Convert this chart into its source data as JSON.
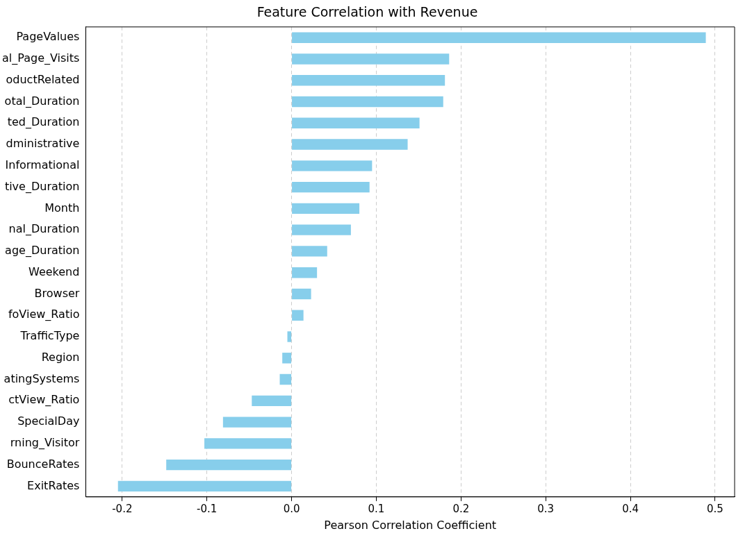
{
  "chart_data": {
    "type": "bar",
    "orientation": "horizontal",
    "title": "Feature Correlation with Revenue",
    "xlabel": "Pearson Correlation Coefficient",
    "categories": [
      "PageValues",
      "al_Page_Visits",
      "oductRelated",
      "otal_Duration",
      "ted_Duration",
      "dministrative",
      "Informational",
      "tive_Duration",
      "Month",
      "nal_Duration",
      "age_Duration",
      "Weekend",
      "Browser",
      "foView_Ratio",
      "TrafficType",
      "Region",
      "atingSystems",
      "ctView_Ratio",
      "SpecialDay",
      "rning_Visitor",
      "BounceRates",
      "ExitRates"
    ],
    "values": [
      0.489,
      0.186,
      0.181,
      0.179,
      0.151,
      0.137,
      0.095,
      0.092,
      0.08,
      0.07,
      0.042,
      0.03,
      0.023,
      0.014,
      -0.005,
      -0.011,
      -0.014,
      -0.047,
      -0.081,
      -0.103,
      -0.148,
      -0.205
    ],
    "color": "#87ceeb",
    "xlim": [
      -0.243,
      0.523
    ],
    "xticks": [
      -0.2,
      -0.1,
      {
        "value": 0,
        "label": "0.0"
      },
      0.1,
      0.2,
      0.3,
      0.4,
      0.5
    ],
    "grid": "x"
  }
}
